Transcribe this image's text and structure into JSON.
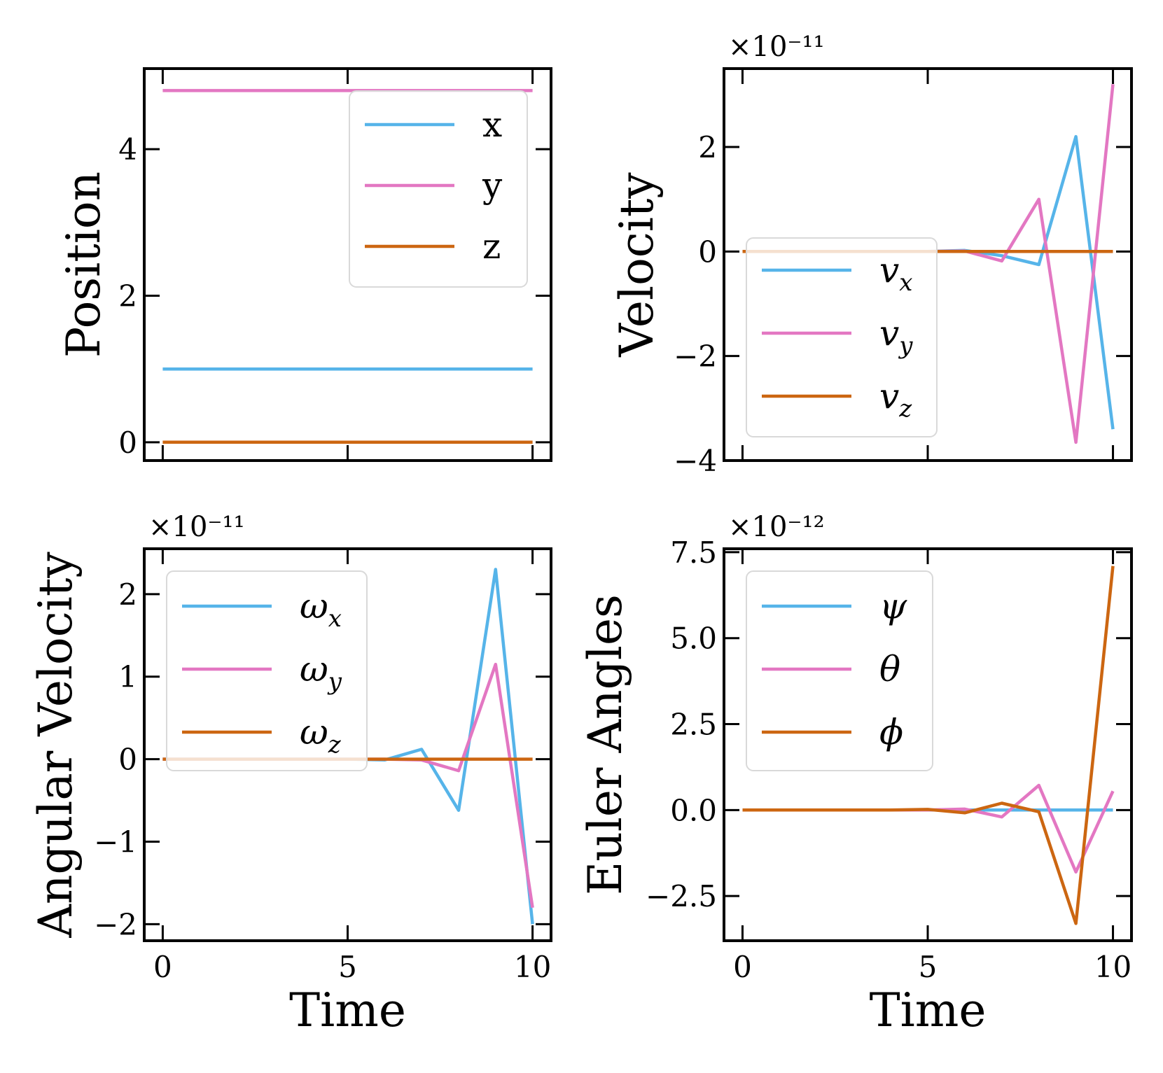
{
  "chart_data": [
    {
      "type": "line",
      "id": "position",
      "title": "",
      "xlabel": "",
      "ylabel": "Position",
      "offset_text": "",
      "xlim": [
        -0.5,
        10.5
      ],
      "ylim": [
        -0.25,
        5.1
      ],
      "xticks": [
        0,
        5,
        10
      ],
      "xtick_labels": [
        "",
        "",
        ""
      ],
      "yticks": [
        0,
        2,
        4
      ],
      "ytick_labels": [
        "0",
        "2",
        "4"
      ],
      "legend_position": "upper-right",
      "x": [
        0,
        1,
        2,
        3,
        4,
        5,
        6,
        7,
        8,
        9,
        10
      ],
      "series": [
        {
          "name": "x",
          "label_main": "x",
          "label_sub": "",
          "italic": false,
          "color": "#56B4E9",
          "values": [
            1,
            1,
            1,
            1,
            1,
            1,
            1,
            1,
            1,
            1,
            1
          ]
        },
        {
          "name": "y",
          "label_main": "y",
          "label_sub": "",
          "italic": false,
          "color": "#E377C2",
          "values": [
            4.8,
            4.8,
            4.8,
            4.8,
            4.8,
            4.8,
            4.8,
            4.8,
            4.8,
            4.8,
            4.8
          ]
        },
        {
          "name": "z",
          "label_main": "z",
          "label_sub": "",
          "italic": false,
          "color": "#CC6611",
          "values": [
            0,
            0,
            0,
            0,
            0,
            0,
            0,
            0,
            0,
            0,
            0
          ]
        }
      ]
    },
    {
      "type": "line",
      "id": "velocity",
      "title": "",
      "xlabel": "",
      "ylabel": "Velocity",
      "offset_text": "×10⁻¹¹",
      "xlim": [
        -0.5,
        10.5
      ],
      "ylim": [
        -4,
        3.5
      ],
      "xticks": [
        0,
        5,
        10
      ],
      "xtick_labels": [
        "",
        "",
        ""
      ],
      "yticks": [
        -4,
        -2,
        0,
        2
      ],
      "ytick_labels": [
        "−4",
        "−2",
        "0",
        "2"
      ],
      "legend_position": "lower-left",
      "x": [
        0,
        1,
        2,
        3,
        4,
        5,
        6,
        7,
        8,
        9,
        10
      ],
      "series": [
        {
          "name": "vx",
          "label_main": "v",
          "label_sub": "x",
          "italic": true,
          "color": "#56B4E9",
          "values": [
            0,
            0,
            0,
            0,
            0,
            0,
            0.02,
            -0.08,
            -0.25,
            2.2,
            -3.4
          ]
        },
        {
          "name": "vy",
          "label_main": "v",
          "label_sub": "y",
          "italic": true,
          "color": "#E377C2",
          "values": [
            0,
            0,
            0,
            0,
            0,
            0,
            0.01,
            -0.18,
            1.0,
            -3.65,
            3.2
          ]
        },
        {
          "name": "vz",
          "label_main": "v",
          "label_sub": "z",
          "italic": true,
          "color": "#CC6611",
          "values": [
            0,
            0,
            0,
            0,
            0,
            0,
            0,
            0,
            0,
            0,
            0
          ]
        }
      ]
    },
    {
      "type": "line",
      "id": "angular-velocity",
      "title": "",
      "xlabel": "Time",
      "ylabel": "Angular Velocity",
      "offset_text": "×10⁻¹¹",
      "xlim": [
        -0.5,
        10.5
      ],
      "ylim": [
        -2.2,
        2.55
      ],
      "xticks": [
        0,
        5,
        10
      ],
      "xtick_labels": [
        "0",
        "5",
        "10"
      ],
      "yticks": [
        -2,
        -1,
        0,
        1,
        2
      ],
      "ytick_labels": [
        "−2",
        "−1",
        "0",
        "1",
        "2"
      ],
      "legend_position": "upper-left",
      "x": [
        0,
        1,
        2,
        3,
        4,
        5,
        6,
        7,
        8,
        9,
        10
      ],
      "series": [
        {
          "name": "ωx",
          "label_main": "ω",
          "label_sub": "x",
          "italic": true,
          "color": "#56B4E9",
          "values": [
            0,
            0,
            0,
            0,
            0,
            0,
            -0.01,
            0.12,
            -0.62,
            2.3,
            -2.0
          ]
        },
        {
          "name": "ωy",
          "label_main": "ω",
          "label_sub": "y",
          "italic": true,
          "color": "#E377C2",
          "values": [
            0,
            0,
            0,
            0,
            0,
            0,
            0,
            -0.01,
            -0.14,
            1.15,
            -1.8
          ]
        },
        {
          "name": "ωz",
          "label_main": "ω",
          "label_sub": "z",
          "italic": true,
          "color": "#CC6611",
          "values": [
            0,
            0,
            0,
            0,
            0,
            0,
            0,
            0,
            0,
            0,
            0
          ]
        }
      ]
    },
    {
      "type": "line",
      "id": "euler-angles",
      "title": "",
      "xlabel": "Time",
      "ylabel": "Euler Angles",
      "offset_text": "×10⁻¹²",
      "xlim": [
        -0.5,
        10.5
      ],
      "ylim": [
        -3.8,
        7.6
      ],
      "xticks": [
        0,
        5,
        10
      ],
      "xtick_labels": [
        "0",
        "5",
        "10"
      ],
      "yticks": [
        -2.5,
        0,
        2.5,
        5,
        7.5
      ],
      "ytick_labels": [
        "−2.5",
        "0.0",
        "2.5",
        "5.0",
        "7.5"
      ],
      "legend_position": "upper-left",
      "x": [
        0,
        1,
        2,
        3,
        4,
        5,
        6,
        7,
        8,
        9,
        10
      ],
      "series": [
        {
          "name": "ψ",
          "label_main": "ψ",
          "label_sub": "",
          "italic": true,
          "color": "#56B4E9",
          "values": [
            0,
            0,
            0,
            0,
            0,
            0,
            0,
            0,
            0,
            0,
            0
          ]
        },
        {
          "name": "θ",
          "label_main": "θ",
          "label_sub": "",
          "italic": true,
          "color": "#E377C2",
          "values": [
            0,
            0,
            0,
            0,
            0,
            0,
            0.03,
            -0.2,
            0.72,
            -1.8,
            0.55
          ]
        },
        {
          "name": "ϕ",
          "label_main": "ϕ",
          "label_sub": "",
          "italic": true,
          "color": "#CC6611",
          "values": [
            0,
            0,
            0,
            0,
            0,
            0.02,
            -0.08,
            0.2,
            -0.05,
            -3.3,
            7.1
          ]
        }
      ]
    }
  ]
}
